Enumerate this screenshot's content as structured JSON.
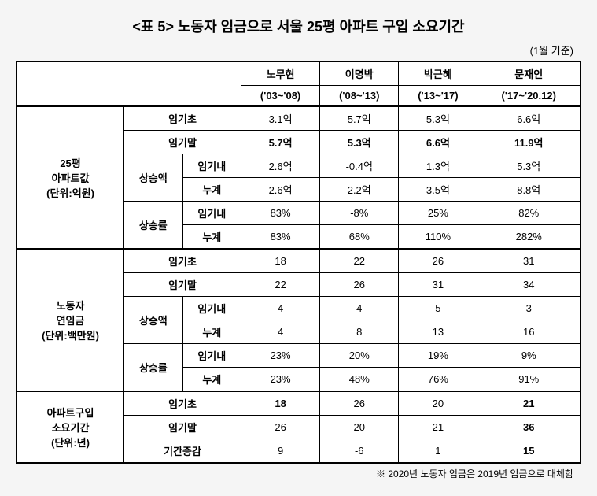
{
  "title": "<표 5> 노동자 임금으로 서울 25평 아파트 구입 소요기간",
  "subtitle": "(1월 기준)",
  "footnote": "※ 2020년 노동자 임금은 2019년 임금으로 대체함",
  "headers": {
    "col1": {
      "name": "노무현",
      "period": "('03~'08)"
    },
    "col2": {
      "name": "이명박",
      "period": "('08~'13)"
    },
    "col3": {
      "name": "박근혜",
      "period": "('13~'17)"
    },
    "col4": {
      "name": "문재인",
      "period": "('17~'20.12)"
    }
  },
  "section1": {
    "title_l1": "25평",
    "title_l2": "아파트값",
    "title_l3": "(단위:억원)",
    "r1": {
      "label": "임기초",
      "v": [
        "3.1억",
        "5.7억",
        "5.3억",
        "6.6억"
      ]
    },
    "r2": {
      "label": "임기말",
      "v": [
        "5.7억",
        "5.3억",
        "6.6억",
        "11.9억"
      ]
    },
    "sub1": {
      "label": "상승액"
    },
    "r3": {
      "label": "임기내",
      "v": [
        "2.6억",
        "-0.4억",
        "1.3억",
        "5.3억"
      ]
    },
    "r4": {
      "label": "누계",
      "v": [
        "2.6억",
        "2.2억",
        "3.5억",
        "8.8억"
      ]
    },
    "sub2": {
      "label": "상승률"
    },
    "r5": {
      "label": "임기내",
      "v": [
        "83%",
        "-8%",
        "25%",
        "82%"
      ]
    },
    "r6": {
      "label": "누계",
      "v": [
        "83%",
        "68%",
        "110%",
        "282%"
      ]
    }
  },
  "section2": {
    "title_l1": "노동자",
    "title_l2": "연임금",
    "title_l3": "(단위:백만원)",
    "r1": {
      "label": "임기초",
      "v": [
        "18",
        "22",
        "26",
        "31"
      ]
    },
    "r2": {
      "label": "임기말",
      "v": [
        "22",
        "26",
        "31",
        "34"
      ]
    },
    "sub1": {
      "label": "상승액"
    },
    "r3": {
      "label": "임기내",
      "v": [
        "4",
        "4",
        "5",
        "3"
      ]
    },
    "r4": {
      "label": "누계",
      "v": [
        "4",
        "8",
        "13",
        "16"
      ]
    },
    "sub2": {
      "label": "상승률"
    },
    "r5": {
      "label": "임기내",
      "v": [
        "23%",
        "20%",
        "19%",
        "9%"
      ]
    },
    "r6": {
      "label": "누계",
      "v": [
        "23%",
        "48%",
        "76%",
        "91%"
      ]
    }
  },
  "section3": {
    "title_l1": "아파트구입",
    "title_l2": "소요기간",
    "title_l3": "(단위:년)",
    "r1": {
      "label": "임기초",
      "v": [
        "18",
        "26",
        "20",
        "21"
      ]
    },
    "r2": {
      "label": "임기말",
      "v": [
        "26",
        "20",
        "21",
        "36"
      ]
    },
    "r3": {
      "label": "기간증감",
      "v": [
        "9",
        "-6",
        "1",
        "15"
      ]
    }
  }
}
